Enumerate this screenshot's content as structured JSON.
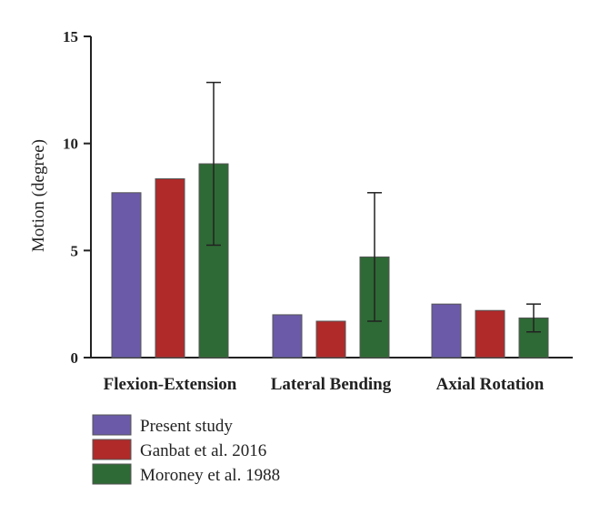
{
  "chart_data": {
    "type": "bar",
    "title": "",
    "xlabel": "",
    "ylabel": "Motion (degree)",
    "ylim": [
      0,
      15
    ],
    "yticks": [
      "0",
      "5",
      "10",
      "15"
    ],
    "categories": [
      "Flexion-Extension",
      "Lateral Bending",
      "Axial Rotation"
    ],
    "series": [
      {
        "name": "Present study",
        "color": "#6a5aa8",
        "values": [
          7.7,
          2.0,
          2.5
        ]
      },
      {
        "name": "Ganbat et al. 2016",
        "color": "#b02a2a",
        "values": [
          8.35,
          1.7,
          2.2
        ]
      },
      {
        "name": "Moroney et al. 1988",
        "color": "#2e6a35",
        "values": [
          9.05,
          4.7,
          1.85
        ],
        "error": [
          3.8,
          3.0,
          0.65
        ]
      }
    ],
    "grid": false,
    "legend_position": "bottom-left"
  }
}
